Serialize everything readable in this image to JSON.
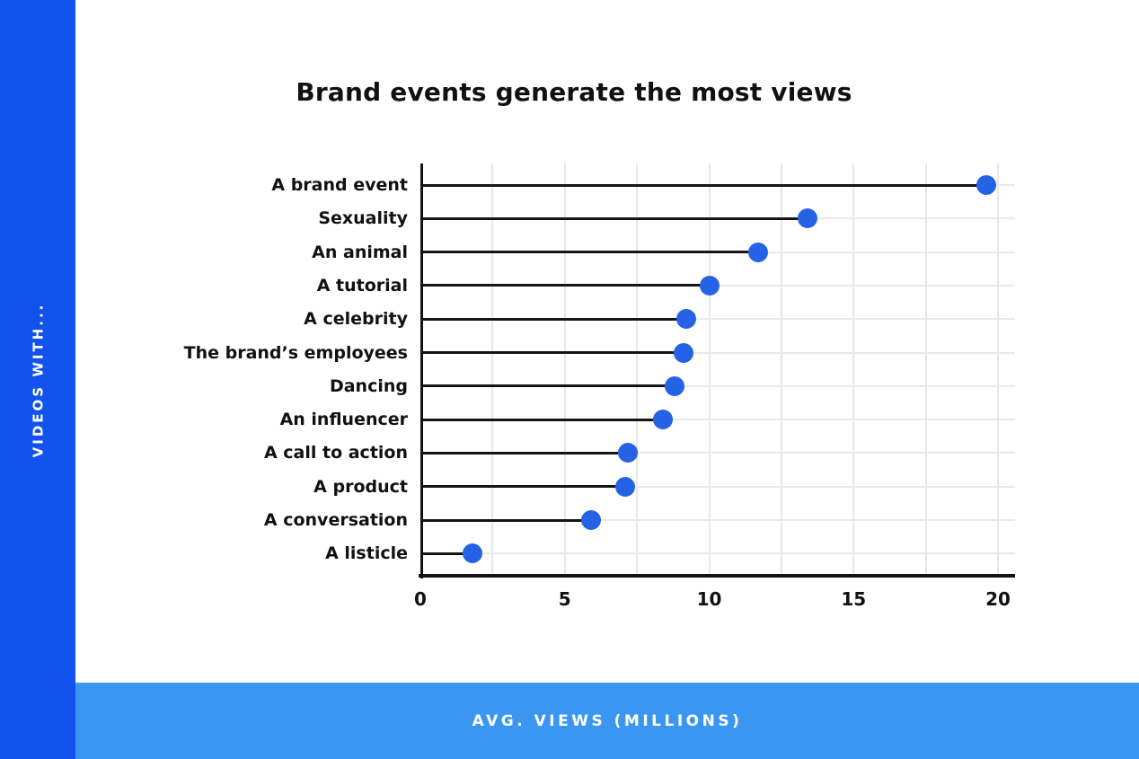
{
  "sidebar": {
    "label": "VIDEOS WITH...",
    "bg_color": "#1353ed",
    "text_color": "#ffffff"
  },
  "footer": {
    "label": "AVG. VIEWS (MILLIONS)",
    "bg_color": "#3b96f2",
    "text_color": "#ffffff"
  },
  "chart_data": {
    "type": "lollipop",
    "orientation": "horizontal",
    "title": "Brand events generate the most views",
    "categories": [
      "A brand event",
      "Sexuality",
      "An animal",
      "A tutorial",
      "A celebrity",
      "The brand’s employees",
      "Dancing",
      "An influencer",
      "A call to action",
      "A product",
      "A conversation",
      "A listicle"
    ],
    "values": [
      19.6,
      13.4,
      11.7,
      10.0,
      9.2,
      9.1,
      8.8,
      8.4,
      7.2,
      7.1,
      5.9,
      1.8
    ],
    "xlabel": "AVG. VIEWS (MILLIONS)",
    "ylabel": "VIDEOS WITH...",
    "xlim": [
      0,
      20
    ],
    "xticks": [
      "0",
      "5",
      "10",
      "15",
      "20"
    ],
    "grid": true,
    "gridline_interval": 2.5,
    "legend": "none",
    "dot_color": "#2563e6",
    "stem_color": "#141414",
    "axis_color": "#141414"
  }
}
